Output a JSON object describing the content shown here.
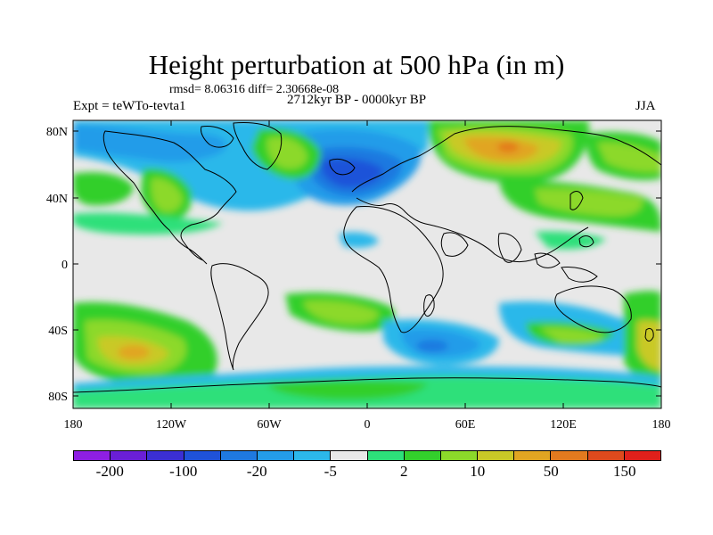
{
  "title": "Height perturbation at 500 hPa (in m)",
  "stats": "rmsd= 8.06316 diff= 2.30668e-08",
  "expt": "Expt = teWTo-tevta1",
  "period": "2712kyr BP - 0000kyr BP",
  "season": "JJA",
  "lat_labels": [
    "80N",
    "40N",
    "0",
    "40S",
    "80S"
  ],
  "lon_labels": [
    "180",
    "120W",
    "60W",
    "0",
    "60E",
    "120E",
    "180"
  ],
  "colorbar": {
    "colors": [
      "#8e1fe3",
      "#6a1fd6",
      "#3b2fd4",
      "#1f52d9",
      "#1f79e0",
      "#249ce9",
      "#2cb8ea",
      "#e8e8e8",
      "#2de07a",
      "#33cf2c",
      "#8cd92a",
      "#c9c927",
      "#e1a522",
      "#e37a1f",
      "#de4a1d",
      "#e0201b"
    ],
    "labels": [
      "-200",
      "-100",
      "-20",
      "-5",
      "2",
      "10",
      "50",
      "150"
    ]
  }
}
